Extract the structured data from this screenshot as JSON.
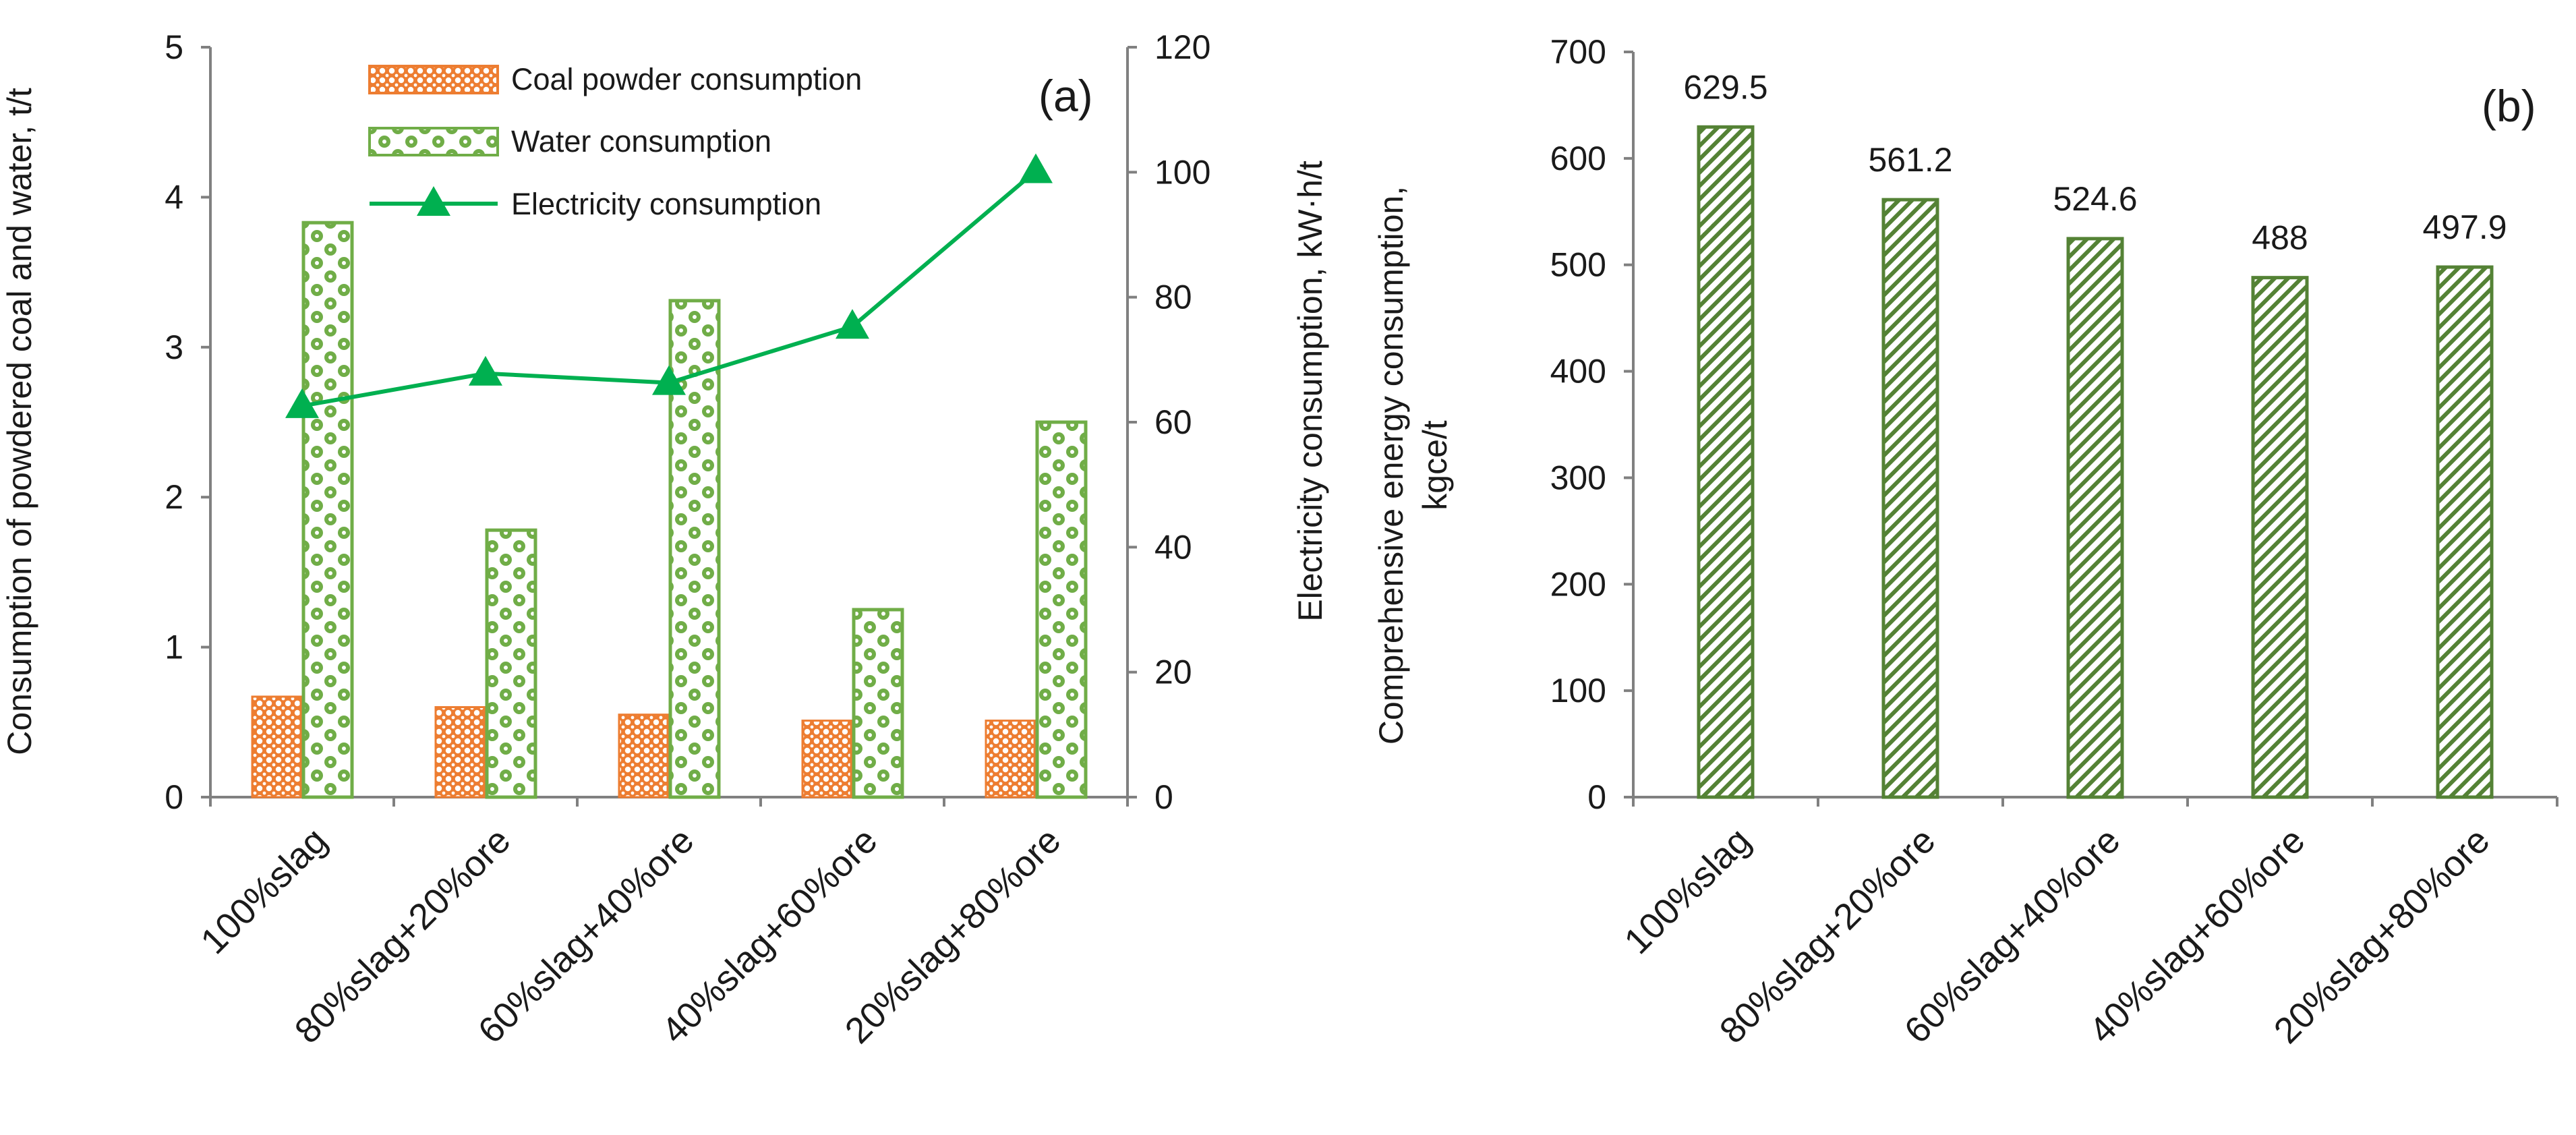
{
  "chart_data": [
    {
      "type": "bar",
      "panel_label": "(a)",
      "categories": [
        "100%slag",
        "80%slag+20%ore",
        "60%slag+40%ore",
        "40%slag+60%ore",
        "20%slag+80%ore"
      ],
      "series": [
        {
          "name": "Coal powder consumption",
          "type": "bar",
          "axis": "left",
          "color": "#ED7D31",
          "values": [
            0.67,
            0.6,
            0.55,
            0.51,
            0.51
          ]
        },
        {
          "name": "Water consumption",
          "type": "bar",
          "axis": "left",
          "color": "#70AD47",
          "values": [
            3.83,
            1.78,
            3.31,
            1.25,
            2.5
          ]
        },
        {
          "name": "Electricity consumption",
          "type": "line",
          "axis": "right",
          "color": "#00B050",
          "values": [
            62.6,
            67.8,
            66.3,
            75.3,
            100.2
          ]
        }
      ],
      "ylabel": "Consumption of  powdered coal and water, t/t",
      "y2label": "Electricity consumption,  kW·h/t",
      "ylim": [
        0,
        5
      ],
      "y2lim": [
        0,
        120
      ],
      "yticks": [
        "0",
        "1",
        "2",
        "3",
        "4",
        "5"
      ],
      "y2ticks": [
        "0",
        "20",
        "40",
        "60",
        "80",
        "100",
        "120"
      ],
      "legend_position": "top-center",
      "grid": false
    },
    {
      "type": "bar",
      "panel_label": "(b)",
      "categories": [
        "100%slag",
        "80%slag+20%ore",
        "60%slag+40%ore",
        "40%slag+60%ore",
        "20%slag+80%ore"
      ],
      "series": [
        {
          "name": "Comprehensive energy consumption",
          "color": "#548235",
          "values": [
            629.5,
            561.2,
            524.6,
            488,
            497.9
          ]
        }
      ],
      "data_labels": [
        "629.5",
        "561.2",
        "524.6",
        "488",
        "497.9"
      ],
      "ylabel": "Comprehensive energy consumption, kgce/t",
      "ylim": [
        0,
        700
      ],
      "yticks": [
        "0",
        "100",
        "200",
        "300",
        "400",
        "500",
        "600",
        "700"
      ],
      "grid": false
    }
  ]
}
